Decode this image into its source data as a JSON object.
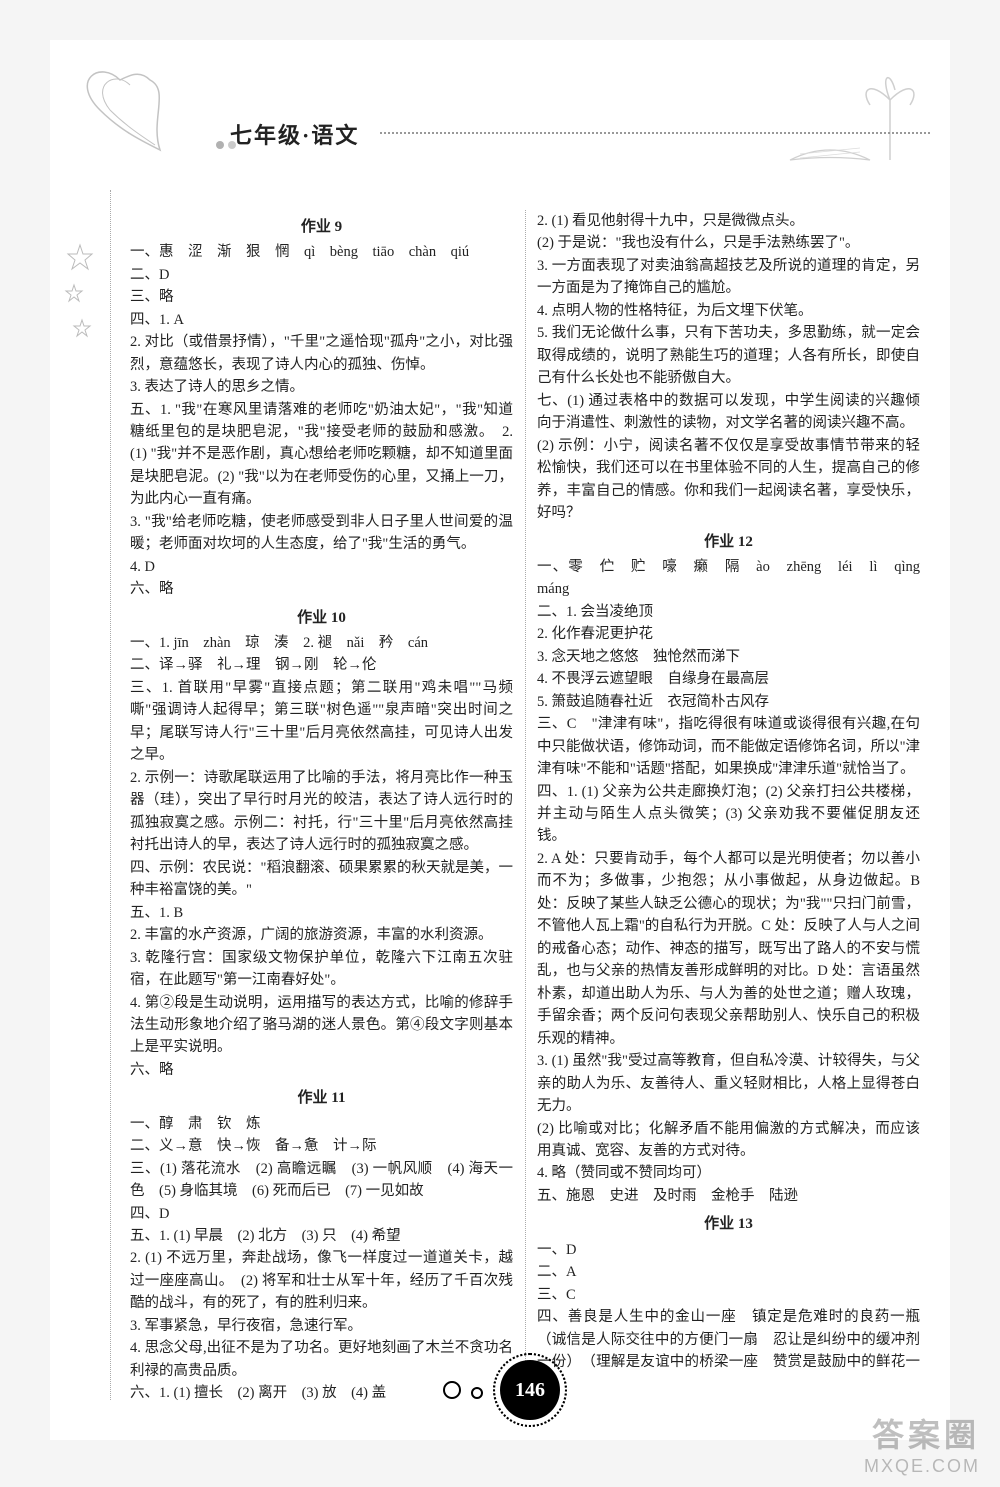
{
  "header": {
    "title": "七年级·语文"
  },
  "footer": {
    "page_number": "146"
  },
  "watermark": {
    "line1": "答案圈",
    "line2": "MXQE.COM"
  },
  "sections": [
    {
      "title": "作业 9",
      "lines": [
        "一、惠　涩　渐　狠　惘　qì　bèng　tiāo　chàn　qiú",
        "二、D",
        "三、略",
        "四、1. A",
        "2. 对比（或借景抒情），\"千里\"之遥恰现\"孤舟\"之小，对比强烈，意蕴悠长，表现了诗人内心的孤独、伤悼。",
        "3. 表达了诗人的思乡之情。",
        "五、1. \"我\"在寒风里请落难的老师吃\"奶油太妃\"，\"我\"知道糖纸里包的是块肥皂泥，\"我\"接受老师的鼓励和感激。　2. (1) \"我\"并不是恶作剧，真心想给老师吃颗糖，却不知道里面是块肥皂泥。(2) \"我\"以为在老师受伤的心里，又捅上一刀，为此内心一直有痛。",
        "3. \"我\"给老师吃糖，使老师感受到非人日子里人世间爱的温暖；老师面对坎坷的人生态度，给了\"我\"生活的勇气。",
        "4. D",
        "六、略"
      ]
    },
    {
      "title": "作业 10",
      "lines": [
        "一、1. jīn　zhàn　琼　湊　2. 褪　nǎi　矜　cán",
        "二、译→驿　礼→理　钢→刚　轮→伦",
        "三、1. 首联用\"早雾\"直接点题；第二联用\"鸡未唱\"\"马频嘶\"强调诗人起得早；第三联\"树色遥\"\"泉声暗\"突出时间之早；尾联写诗人行\"三十里\"后月亮依然高挂，可见诗人出发之早。",
        "2. 示例一：诗歌尾联运用了比喻的手法，将月亮比作一种玉器（珪），突出了早行时月光的皎洁，表达了诗人远行时的孤独寂寞之感。示例二：衬托，行\"三十里\"后月亮依然高挂衬托出诗人的早，表达了诗人远行时的孤独寂寞之感。",
        "四、示例：农民说：\"稻浪翻滚、硕果累累的秋天就是美，一种丰裕富饶的美。\"",
        "五、1. B",
        "2. 丰富的水产资源，广阔的旅游资源，丰富的水利资源。",
        "3. 乾隆行宫：国家级文物保护单位，乾隆六下江南五次驻宿，在此题写\"第一江南春好处\"。",
        "4. 第②段是生动说明，运用描写的表达方式，比喻的修辞手法生动形象地介绍了骆马湖的迷人景色。第④段文字则基本上是平实说明。",
        "六、略"
      ]
    },
    {
      "title": "作业 11",
      "lines": [
        "一、醇　肃　钦　炼",
        "二、义→意　快→恢　备→惫　计→际",
        "三、(1) 落花流水　(2) 高瞻远瞩　(3) 一帆风顺　(4) 海天一色　(5) 身临其境　(6) 死而后已　(7) 一见如故",
        "四、D",
        "五、1. (1) 早晨　(2) 北方　(3) 只　(4) 希望",
        "2. (1) 不远万里，奔赴战场，像飞一样度过一道道关卡，越过一座座高山。　(2) 将军和壮士从军十年，经历了千百次残酷的战斗，有的死了，有的胜利归来。",
        "3. 军事紧急，早行夜宿，急速行军。",
        "4. 思念父母,出征不是为了功名。更好地刻画了木兰不贪功名利禄的高贵品质。",
        "六、1. (1) 擅长　(2) 离开　(3) 放　(4) 盖",
        "2. (1) 看见他射得十九中，只是微微点头。",
        "(2) 于是说：\"我也没有什么，只是手法熟练罢了\"。",
        "3. 一方面表现了对卖油翁高超技艺及所说的道理的肯定，另一方面是为了掩饰自己的尴尬。",
        "4. 点明人物的性格特征，为后文埋下伏笔。",
        "5. 我们无论做什么事，只有下苦功夫，多思勤练，就一定会取得成绩的，说明了熟能生巧的道理；人各有所长，即使自己有什么长处也不能骄傲自大。",
        "七、(1) 通过表格中的数据可以发现，中学生阅读的兴趣倾向于消遣性、刺激性的读物，对文学名著的阅读兴趣不高。",
        "(2) 示例：小宁，阅读名著不仅仅是享受故事情节带来的轻松愉快，我们还可以在书里体验不同的人生，提高自己的修养，丰富自己的情感。你和我们一起阅读名著，享受快乐，好吗？"
      ]
    },
    {
      "title": "作业 12",
      "lines": [
        "一、零　伫　贮　嚎　癞　隔　ào　zhēng　léi　lì　qìng　máng",
        "二、1. 会当凌绝顶",
        "2. 化作春泥更护花",
        "3. 念天地之悠悠　独怆然而涕下",
        "4. 不畏浮云遮望眼　自缘身在最高层",
        "5. 箫鼓追随春社近　衣冠简朴古风存",
        "三、C　\"津津有味\"，指吃得很有味道或谈得很有兴趣,在句中只能做状语，修饰动词，而不能做定语修饰名词，所以\"津津有味\"不能和\"话题\"搭配，如果换成\"津津乐道\"就恰当了。",
        "四、1. (1) 父亲为公共走廊换灯泡；(2) 父亲打扫公共楼梯，并主动与陌生人点头微笑；(3) 父亲劝我不要催促朋友还钱。",
        "2. A 处：只要肯动手，每个人都可以是光明使者；勿以善小而不为；多做事，少抱怨；从小事做起，从身边做起。B 处：反映了某些人缺乏公德心的现状；为\"我\"\"只扫门前雪，不管他人瓦上霜\"的自私行为开脱。C 处：反映了人与人之间的戒备心态；动作、神态的描写，既写出了路人的不安与慌乱，也与父亲的热情友善形成鲜明的对比。D 处：言语虽然朴素，却道出助人为乐、与人为善的处世之道；赠人玫瑰，手留余香；两个反问句表现父亲帮助别人、快乐自己的积极乐观的精神。",
        "3. (1) 虽然\"我\"受过高等教育，但自私冷漠、计较得失，与父亲的助人为乐、友善待人、重义轻财相比，人格上显得苍白无力。",
        "(2) 比喻或对比；化解矛盾不能用偏激的方式解决，而应该用真诚、宽容、友善的方式对待。",
        "4. 略（赞同或不赞同均可）",
        "五、施恩　史进　及时雨　金枪手　陆逊"
      ]
    },
    {
      "title": "作业 13",
      "lines": [
        "一、D",
        "二、A",
        "三、C",
        "四、善良是人生中的金山一座　镇定是危难时的良药一瓶　（诚信是人际交往中的方便门一扇　忍让是纠纷中的缓冲剂一份）　（理解是友谊中的桥梁一座　赞赏是鼓励中的鲜花一束）"
      ]
    }
  ]
}
